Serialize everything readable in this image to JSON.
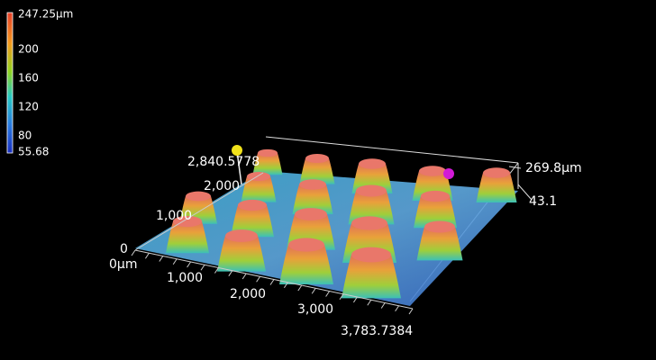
{
  "colorbar": {
    "labels": [
      "247.25μm",
      "200",
      "160",
      "120",
      "80",
      "55.68"
    ]
  },
  "axes": {
    "x": [
      "0μm",
      "1,000",
      "2,000",
      "3,000",
      "3,783.7384"
    ],
    "y": [
      "0",
      "1,000",
      "2,000",
      "2,840.5778"
    ],
    "z": [
      "269.8μm",
      "43.1"
    ]
  }
}
